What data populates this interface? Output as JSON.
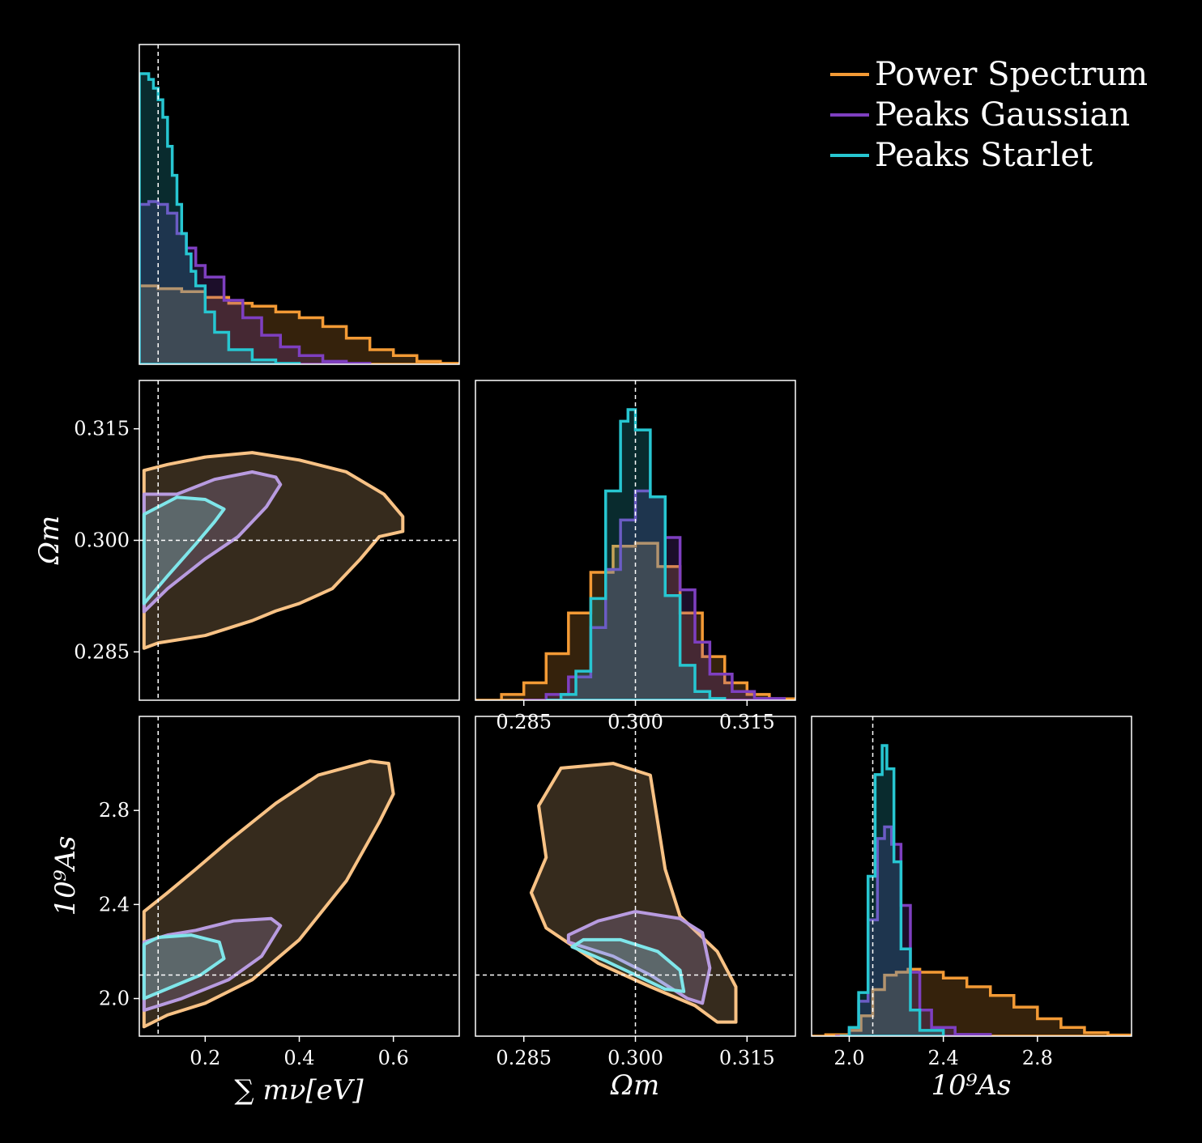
{
  "colors": {
    "Power Spectrum": "#f39a35",
    "Peaks Gaussian": "#7e3fc0",
    "Peaks Starlet": "#27c6d1",
    "contour_Power Spectrum": "#f8c285",
    "contour_Peaks Gaussian": "#b89be0",
    "contour_Peaks Starlet": "#7fe6ea",
    "background": "#000000",
    "frame": "#ffffff"
  },
  "legend": {
    "placement": "top-right",
    "entries": [
      "Power Spectrum",
      "Peaks Gaussian",
      "Peaks Starlet"
    ]
  },
  "axis_labels": {
    "mnu": "∑ mν[eV]",
    "om": "Ωm",
    "as": "10⁹As"
  },
  "chart_data": [
    {
      "type": "area",
      "panel": "mnu-marginal",
      "xlabel": "∑ mν[eV]",
      "xlim": [
        0.06,
        0.74
      ],
      "truth": 0.1,
      "series": [
        {
          "name": "Power Spectrum",
          "x": [
            0.06,
            0.1,
            0.15,
            0.2,
            0.25,
            0.3,
            0.35,
            0.4,
            0.45,
            0.5,
            0.55,
            0.6,
            0.65,
            0.7,
            0.74
          ],
          "density": [
            0.27,
            0.26,
            0.25,
            0.23,
            0.21,
            0.2,
            0.18,
            0.16,
            0.13,
            0.09,
            0.05,
            0.03,
            0.01,
            0.003,
            0.0
          ]
        },
        {
          "name": "Peaks Gaussian",
          "x": [
            0.06,
            0.08,
            0.1,
            0.12,
            0.14,
            0.16,
            0.18,
            0.2,
            0.24,
            0.28,
            0.32,
            0.36,
            0.4,
            0.45,
            0.5,
            0.55
          ],
          "density": [
            0.55,
            0.56,
            0.55,
            0.52,
            0.45,
            0.4,
            0.34,
            0.3,
            0.22,
            0.16,
            0.1,
            0.06,
            0.03,
            0.01,
            0.003,
            0.0
          ]
        },
        {
          "name": "Peaks Starlet",
          "x": [
            0.06,
            0.07,
            0.08,
            0.09,
            0.1,
            0.11,
            0.12,
            0.13,
            0.14,
            0.15,
            0.16,
            0.17,
            0.18,
            0.2,
            0.22,
            0.25,
            0.3,
            0.35,
            0.4
          ],
          "density": [
            1.0,
            1.0,
            0.98,
            0.95,
            0.91,
            0.85,
            0.75,
            0.65,
            0.55,
            0.45,
            0.38,
            0.32,
            0.27,
            0.18,
            0.11,
            0.05,
            0.015,
            0.003,
            0.0
          ]
        }
      ]
    },
    {
      "type": "contour",
      "panel": "om-vs-mnu",
      "xlabel": "",
      "ylabel": "Ωm",
      "xlim": [
        0.06,
        0.74
      ],
      "ylim": [
        0.2785,
        0.3215
      ],
      "xticks": [],
      "yticks": [
        "0.285",
        "0.300",
        "0.315"
      ],
      "truth": {
        "x": 0.1,
        "y": 0.3
      },
      "series": [
        {
          "name": "Power Spectrum",
          "points": [
            [
              0.07,
              0.2855
            ],
            [
              0.1,
              0.2862
            ],
            [
              0.2,
              0.2872
            ],
            [
              0.3,
              0.2892
            ],
            [
              0.35,
              0.2905
            ],
            [
              0.4,
              0.2915
            ],
            [
              0.47,
              0.2935
            ],
            [
              0.53,
              0.2975
            ],
            [
              0.57,
              0.3005
            ],
            [
              0.62,
              0.3012
            ],
            [
              0.62,
              0.3032
            ],
            [
              0.58,
              0.3062
            ],
            [
              0.5,
              0.3092
            ],
            [
              0.4,
              0.3108
            ],
            [
              0.3,
              0.3118
            ],
            [
              0.2,
              0.3112
            ],
            [
              0.12,
              0.3102
            ],
            [
              0.07,
              0.3094
            ]
          ]
        },
        {
          "name": "Peaks Gaussian",
          "points": [
            [
              0.07,
              0.2904
            ],
            [
              0.12,
              0.2935
            ],
            [
              0.2,
              0.2975
            ],
            [
              0.27,
              0.3005
            ],
            [
              0.33,
              0.3045
            ],
            [
              0.36,
              0.3075
            ],
            [
              0.35,
              0.3085
            ],
            [
              0.3,
              0.3092
            ],
            [
              0.22,
              0.3082
            ],
            [
              0.14,
              0.3062
            ],
            [
              0.07,
              0.3062
            ]
          ]
        },
        {
          "name": "Peaks Starlet",
          "points": [
            [
              0.07,
              0.2915
            ],
            [
              0.12,
              0.2952
            ],
            [
              0.18,
              0.2995
            ],
            [
              0.22,
              0.3025
            ],
            [
              0.24,
              0.3042
            ],
            [
              0.2,
              0.3055
            ],
            [
              0.14,
              0.3058
            ],
            [
              0.07,
              0.3035
            ]
          ]
        }
      ]
    },
    {
      "type": "area",
      "panel": "om-marginal",
      "xlabel": "Ωm",
      "xlim": [
        0.2785,
        0.3215
      ],
      "xticks": [
        "0.285",
        "0.300",
        "0.315"
      ],
      "truth": 0.3,
      "series": [
        {
          "name": "Power Spectrum",
          "x": [
            0.2785,
            0.282,
            0.285,
            0.288,
            0.291,
            0.294,
            0.297,
            0.3,
            0.303,
            0.306,
            0.309,
            0.312,
            0.315,
            0.318,
            0.3215
          ],
          "density": [
            0.0,
            0.02,
            0.06,
            0.16,
            0.3,
            0.44,
            0.53,
            0.54,
            0.46,
            0.3,
            0.15,
            0.06,
            0.02,
            0.005,
            0.0
          ]
        },
        {
          "name": "Peaks Gaussian",
          "x": [
            0.285,
            0.288,
            0.291,
            0.294,
            0.296,
            0.298,
            0.3,
            0.302,
            0.304,
            0.306,
            0.308,
            0.31,
            0.313,
            0.316,
            0.32
          ],
          "density": [
            0.0,
            0.02,
            0.08,
            0.25,
            0.45,
            0.62,
            0.72,
            0.7,
            0.56,
            0.38,
            0.2,
            0.09,
            0.03,
            0.006,
            0.0
          ]
        },
        {
          "name": "Peaks Starlet",
          "x": [
            0.288,
            0.29,
            0.292,
            0.294,
            0.296,
            0.298,
            0.299,
            0.3,
            0.302,
            0.304,
            0.306,
            0.308,
            0.31,
            0.312
          ],
          "density": [
            0.0,
            0.02,
            0.1,
            0.35,
            0.72,
            0.96,
            1.0,
            0.93,
            0.7,
            0.36,
            0.12,
            0.03,
            0.006,
            0.0
          ]
        }
      ]
    },
    {
      "type": "contour",
      "panel": "as-vs-mnu",
      "xlabel": "∑ mν[eV]",
      "ylabel": "10⁹As",
      "xlim": [
        0.06,
        0.74
      ],
      "ylim": [
        1.84,
        3.2
      ],
      "xticks": [
        "0.2",
        "0.4",
        "0.6"
      ],
      "yticks": [
        "2.0",
        "2.4",
        "2.8"
      ],
      "truth": {
        "x": 0.1,
        "y": 2.1
      },
      "series": [
        {
          "name": "Power Spectrum",
          "points": [
            [
              0.07,
              1.88
            ],
            [
              0.12,
              1.93
            ],
            [
              0.2,
              1.98
            ],
            [
              0.3,
              2.08
            ],
            [
              0.4,
              2.25
            ],
            [
              0.5,
              2.5
            ],
            [
              0.57,
              2.75
            ],
            [
              0.6,
              2.87
            ],
            [
              0.59,
              3.0
            ],
            [
              0.55,
              3.01
            ],
            [
              0.44,
              2.95
            ],
            [
              0.35,
              2.83
            ],
            [
              0.25,
              2.67
            ],
            [
              0.18,
              2.55
            ],
            [
              0.12,
              2.45
            ],
            [
              0.07,
              2.37
            ]
          ]
        },
        {
          "name": "Peaks Gaussian",
          "points": [
            [
              0.07,
              1.95
            ],
            [
              0.15,
              2.0
            ],
            [
              0.25,
              2.08
            ],
            [
              0.32,
              2.18
            ],
            [
              0.36,
              2.31
            ],
            [
              0.34,
              2.34
            ],
            [
              0.26,
              2.33
            ],
            [
              0.18,
              2.29
            ],
            [
              0.12,
              2.27
            ],
            [
              0.07,
              2.24
            ]
          ]
        },
        {
          "name": "Peaks Starlet",
          "points": [
            [
              0.07,
              2.0
            ],
            [
              0.13,
              2.05
            ],
            [
              0.19,
              2.1
            ],
            [
              0.24,
              2.17
            ],
            [
              0.23,
              2.24
            ],
            [
              0.17,
              2.27
            ],
            [
              0.1,
              2.26
            ],
            [
              0.07,
              2.23
            ]
          ]
        }
      ]
    },
    {
      "type": "contour",
      "panel": "as-vs-om",
      "xlabel": "Ωm",
      "ylabel": "",
      "xlim": [
        0.2785,
        0.3215
      ],
      "ylim": [
        1.84,
        3.2
      ],
      "xticks": [
        "0.285",
        "0.300",
        "0.315"
      ],
      "yticks": [],
      "truth": {
        "x": 0.3,
        "y": 2.1
      },
      "series": [
        {
          "name": "Power Spectrum",
          "points": [
            [
              0.288,
              2.3
            ],
            [
              0.295,
              2.15
            ],
            [
              0.302,
              2.05
            ],
            [
              0.308,
              1.97
            ],
            [
              0.311,
              1.9
            ],
            [
              0.3135,
              1.9
            ],
            [
              0.3135,
              2.05
            ],
            [
              0.311,
              2.2
            ],
            [
              0.306,
              2.35
            ],
            [
              0.304,
              2.55
            ],
            [
              0.303,
              2.75
            ],
            [
              0.302,
              2.95
            ],
            [
              0.297,
              3.0
            ],
            [
              0.29,
              2.98
            ],
            [
              0.287,
              2.82
            ],
            [
              0.288,
              2.6
            ],
            [
              0.286,
              2.45
            ]
          ]
        },
        {
          "name": "Peaks Gaussian",
          "points": [
            [
              0.291,
              2.24
            ],
            [
              0.297,
              2.18
            ],
            [
              0.302,
              2.1
            ],
            [
              0.307,
              2.0
            ],
            [
              0.309,
              1.98
            ],
            [
              0.31,
              2.13
            ],
            [
              0.309,
              2.28
            ],
            [
              0.306,
              2.34
            ],
            [
              0.3,
              2.37
            ],
            [
              0.295,
              2.33
            ],
            [
              0.291,
              2.27
            ]
          ]
        },
        {
          "name": "Peaks Starlet",
          "points": [
            [
              0.2915,
              2.22
            ],
            [
              0.296,
              2.16
            ],
            [
              0.3,
              2.1
            ],
            [
              0.304,
              2.04
            ],
            [
              0.3065,
              2.03
            ],
            [
              0.306,
              2.12
            ],
            [
              0.303,
              2.2
            ],
            [
              0.298,
              2.25
            ],
            [
              0.293,
              2.25
            ]
          ]
        }
      ]
    },
    {
      "type": "area",
      "panel": "as-marginal",
      "xlabel": "10⁹As",
      "xlim": [
        1.84,
        3.2
      ],
      "xticks": [
        "2.0",
        "2.4",
        "2.8"
      ],
      "truth": 2.1,
      "series": [
        {
          "name": "Power Spectrum",
          "x": [
            1.84,
            1.9,
            2.0,
            2.05,
            2.1,
            2.15,
            2.2,
            2.25,
            2.3,
            2.4,
            2.5,
            2.6,
            2.7,
            2.8,
            2.9,
            3.0,
            3.1,
            3.2
          ],
          "density": [
            0.0,
            0.005,
            0.02,
            0.07,
            0.16,
            0.21,
            0.22,
            0.23,
            0.22,
            0.2,
            0.17,
            0.14,
            0.1,
            0.06,
            0.03,
            0.012,
            0.004,
            0.0
          ]
        },
        {
          "name": "Peaks Gaussian",
          "x": [
            1.94,
            2.0,
            2.04,
            2.08,
            2.12,
            2.15,
            2.18,
            2.22,
            2.26,
            2.3,
            2.35,
            2.45,
            2.6
          ],
          "density": [
            0.0,
            0.03,
            0.12,
            0.4,
            0.68,
            0.72,
            0.66,
            0.45,
            0.22,
            0.09,
            0.03,
            0.006,
            0.0
          ]
        },
        {
          "name": "Peaks Starlet",
          "x": [
            1.96,
            2.0,
            2.04,
            2.08,
            2.11,
            2.14,
            2.16,
            2.19,
            2.22,
            2.26,
            2.3,
            2.4
          ],
          "density": [
            0.0,
            0.03,
            0.15,
            0.55,
            0.9,
            1.0,
            0.92,
            0.6,
            0.3,
            0.09,
            0.02,
            0.0
          ]
        }
      ]
    }
  ]
}
